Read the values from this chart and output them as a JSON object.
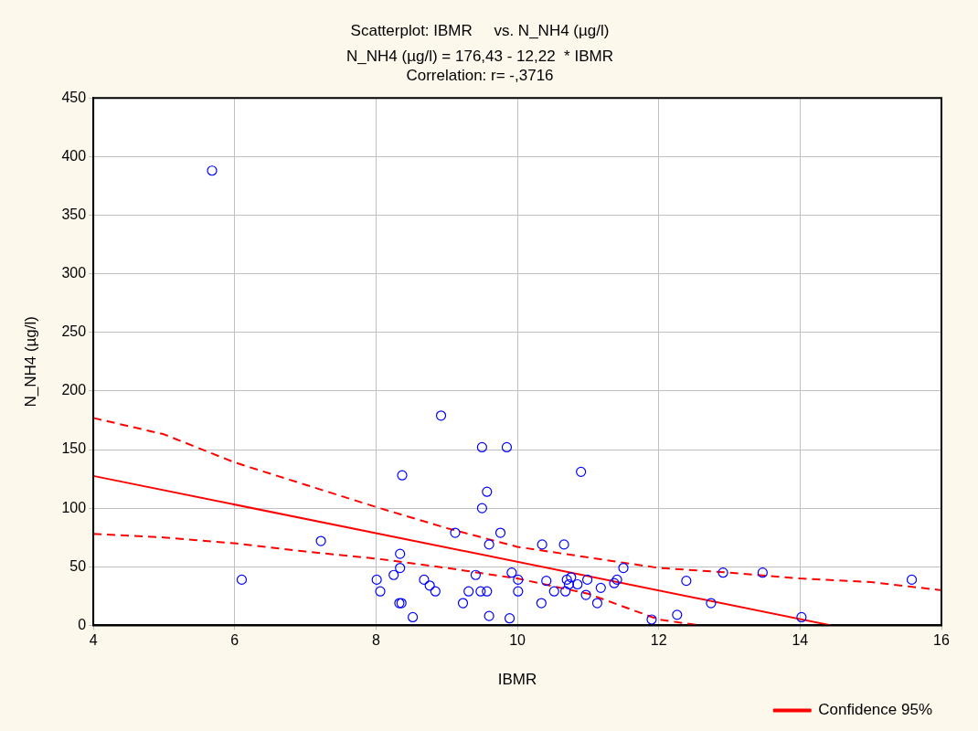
{
  "chart_data": {
    "type": "scatter",
    "title": "Scatterplot: IBMR     vs. N_NH4 (µg/l)",
    "subtitle": "N_NH4 (µg/l) = 176,43 - 12,22  * IBMR",
    "annotations": [
      "Correlation: r= -,3716"
    ],
    "xlabel": "IBMR",
    "ylabel": "N_NH4 (µg/l)",
    "xlim": [
      4,
      16
    ],
    "xticks": [
      4,
      6,
      8,
      10,
      12,
      14,
      16
    ],
    "ylim": [
      0,
      450
    ],
    "yticks": [
      0,
      50,
      100,
      150,
      200,
      250,
      300,
      350,
      400,
      450
    ],
    "grid": true,
    "legend": "bottom right",
    "series": [
      {
        "color": "#0000ff",
        "marker": "circle",
        "x": [
          5.68,
          6.1,
          7.22,
          8.01,
          8.06,
          8.25,
          8.34,
          8.34,
          8.33,
          8.36,
          8.37,
          8.52,
          8.68,
          8.76,
          8.84,
          8.92,
          9.12,
          9.23,
          9.31,
          9.41,
          9.48,
          9.5,
          9.5,
          9.57,
          9.57,
          9.6,
          9.6,
          9.76,
          9.85,
          9.89,
          9.92,
          10.01,
          10.01,
          10.34,
          10.35,
          10.41,
          10.52,
          10.66,
          10.68,
          10.7,
          10.73,
          10.76,
          10.85,
          10.9,
          10.97,
          10.99,
          11.13,
          11.18,
          11.37,
          11.41,
          11.5,
          11.9,
          12.26,
          12.39,
          12.74,
          12.91,
          13.47,
          14.02,
          15.58
        ],
        "values": [
          388,
          39,
          72,
          39,
          29,
          43,
          49,
          61,
          19,
          19,
          128,
          7,
          39,
          34,
          29,
          179,
          79,
          19,
          29,
          43,
          29,
          152,
          100,
          114,
          29,
          8,
          69,
          79,
          152,
          6,
          45,
          39,
          29,
          19,
          69,
          38,
          29,
          69,
          29,
          39,
          35,
          41,
          35,
          131,
          26,
          39,
          19,
          32,
          36,
          39,
          49,
          5,
          9,
          38,
          19,
          45,
          45,
          7,
          39
        ]
      },
      {
        "type": "line",
        "name": "Confidence 95%",
        "color": "#ff0000",
        "marker": "none",
        "line_style": "solid",
        "x": [
          4,
          14.44
        ],
        "values": [
          127.5,
          0
        ]
      },
      {
        "type": "line",
        "color": "#ff0000",
        "marker": "none",
        "line_style": "dashed",
        "x": [
          4,
          5,
          6,
          7,
          8,
          9,
          10,
          11,
          12,
          13,
          14,
          15,
          16
        ],
        "values": [
          177,
          163,
          139,
          120,
          101,
          83,
          67,
          58,
          49,
          45,
          40,
          37,
          30
        ]
      },
      {
        "type": "line",
        "color": "#ff0000",
        "marker": "none",
        "line_style": "dashed",
        "x": [
          4,
          5,
          6,
          7,
          8,
          9,
          10,
          11,
          12,
          12.58
        ],
        "values": [
          78,
          75,
          70,
          63,
          57,
          49,
          40,
          27,
          5,
          0
        ]
      }
    ]
  }
}
